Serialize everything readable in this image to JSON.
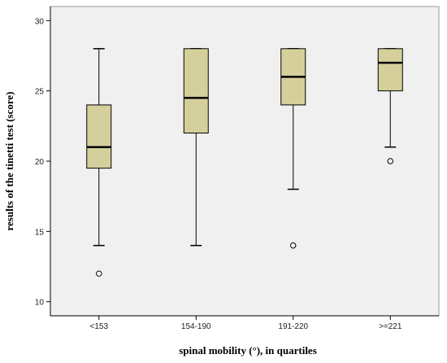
{
  "chart_data": {
    "type": "box",
    "xlabel": "spinal mobility (°), in quartiles",
    "ylabel": "results of the tinetti test (score)",
    "ylim": [
      9,
      31
    ],
    "yticks": [
      10,
      15,
      20,
      25,
      30
    ],
    "grid": false,
    "colors": {
      "box_fill": "#d5cf9c",
      "plot_bg": "#f0f0f0",
      "stroke": "#000000"
    },
    "categories": [
      "<153",
      "154-190",
      "191-220",
      ">=221"
    ],
    "boxes": [
      {
        "category": "<153",
        "whisker_low": 14,
        "q1": 19.5,
        "median": 21,
        "q3": 24,
        "whisker_high": 28,
        "outliers": [
          12
        ]
      },
      {
        "category": "154-190",
        "whisker_low": 14,
        "q1": 22,
        "median": 24.5,
        "q3": 28,
        "whisker_high": 28,
        "outliers": []
      },
      {
        "category": "191-220",
        "whisker_low": 18,
        "q1": 24,
        "median": 26,
        "q3": 28,
        "whisker_high": 28,
        "outliers": [
          14
        ]
      },
      {
        "category": ">=221",
        "whisker_low": 21,
        "q1": 25,
        "median": 27,
        "q3": 28,
        "whisker_high": 28,
        "outliers": [
          20
        ]
      }
    ]
  }
}
